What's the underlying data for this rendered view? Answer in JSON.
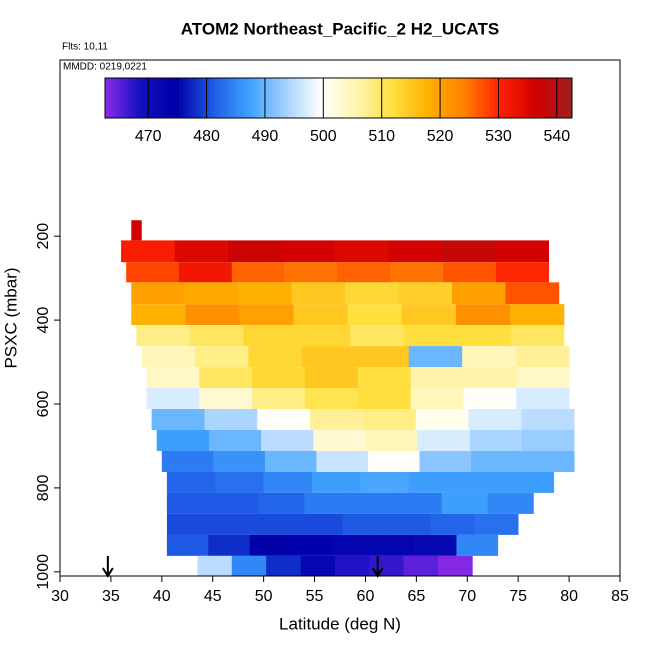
{
  "chart_data": {
    "type": "curtain",
    "title": "ATOM2 Northeast_Pacific_2 H2_UCATS",
    "subtitle": "Flts: 10,11",
    "annotation": "MMDD: 0219,0221",
    "xlabel": "Latitude (deg N)",
    "ylabel": "PSXC (mbar)",
    "xlim": [
      30,
      85
    ],
    "xticks": [
      30,
      35,
      40,
      45,
      50,
      55,
      60,
      65,
      70,
      75,
      80,
      85
    ],
    "ylim": [
      1010,
      -220
    ],
    "yticks": [
      200,
      400,
      600,
      800,
      1000
    ],
    "colorlim": [
      462.6,
      542.6
    ],
    "colorticks": [
      470,
      480,
      490,
      500,
      510,
      520,
      530,
      540
    ],
    "colormap": [
      "#8b2be8",
      "#1010c0",
      "#0000a8",
      "#1e5ae6",
      "#3ea0ff",
      "#a0d0ff",
      "#ffffff",
      "#fff5b0",
      "#ffe040",
      "#ffb000",
      "#ff8000",
      "#ff2000",
      "#d00000",
      "#a02020"
    ],
    "arrows_lat": [
      34.7,
      61.2
    ],
    "rows": [
      {
        "p": [
          162,
          210
        ],
        "lat": [
          37,
          38
        ],
        "values": [
          536
        ]
      },
      {
        "p": [
          210,
          262
        ],
        "lat": [
          36,
          78
        ],
        "values": [
          531,
          535,
          537,
          536,
          535,
          536,
          538,
          536
        ]
      },
      {
        "p": [
          262,
          310
        ],
        "lat": [
          36.5,
          78
        ],
        "values": [
          528,
          532,
          526,
          525,
          526,
          525,
          527,
          530
        ]
      },
      {
        "p": [
          310,
          362
        ],
        "lat": [
          37,
          79
        ],
        "values": [
          520,
          519,
          518,
          515,
          513,
          514,
          520,
          527
        ]
      },
      {
        "p": [
          362,
          412
        ],
        "lat": [
          37,
          79.5
        ],
        "values": [
          518,
          522,
          520,
          515,
          512,
          515,
          522,
          518
        ]
      },
      {
        "p": [
          412,
          462
        ],
        "lat": [
          37.5,
          79.5
        ],
        "values": [
          508,
          510,
          513,
          513,
          510,
          512,
          512,
          510
        ]
      },
      {
        "p": [
          462,
          512
        ],
        "lat": [
          38,
          80
        ],
        "values": [
          505,
          508,
          513,
          515,
          515,
          490,
          505,
          507
        ]
      },
      {
        "p": [
          512,
          562
        ],
        "lat": [
          38.5,
          80
        ],
        "values": [
          504,
          510,
          513,
          515,
          512,
          506,
          506,
          504
        ]
      },
      {
        "p": [
          562,
          612
        ],
        "lat": [
          38.5,
          80
        ],
        "values": [
          497,
          503,
          508,
          511,
          512,
          505,
          500,
          497
        ]
      },
      {
        "p": [
          612,
          662
        ],
        "lat": [
          39,
          80.5
        ],
        "values": [
          490,
          494,
          500,
          507,
          508,
          501,
          497,
          495
        ]
      },
      {
        "p": [
          662,
          712
        ],
        "lat": [
          39.5,
          80.5
        ],
        "values": [
          487,
          490,
          495,
          503,
          505,
          497,
          494,
          493
        ]
      },
      {
        "p": [
          712,
          762
        ],
        "lat": [
          40,
          80.5
        ],
        "values": [
          484,
          486,
          490,
          496,
          500,
          492,
          490,
          490
        ]
      },
      {
        "p": [
          762,
          812
        ],
        "lat": [
          40.5,
          78.5
        ],
        "values": [
          482,
          483,
          485,
          487,
          488,
          487,
          487,
          487
        ]
      },
      {
        "p": [
          812,
          862
        ],
        "lat": [
          40.5,
          76.5
        ],
        "values": [
          481,
          481,
          482,
          484,
          484,
          484,
          487,
          485
        ]
      },
      {
        "p": [
          862,
          912
        ],
        "lat": [
          40.5,
          75
        ],
        "values": [
          480,
          480,
          480,
          480,
          481,
          481,
          482,
          483
        ]
      },
      {
        "p": [
          912,
          962
        ],
        "lat": [
          40.5,
          73
        ],
        "values": [
          481,
          478,
          475,
          474,
          473,
          473,
          472,
          485
        ]
      },
      {
        "p": [
          962,
          1010
        ],
        "lat": [
          43.5,
          70.5
        ],
        "values": [
          495,
          485,
          478,
          472,
          468,
          467,
          465,
          463
        ]
      }
    ]
  }
}
